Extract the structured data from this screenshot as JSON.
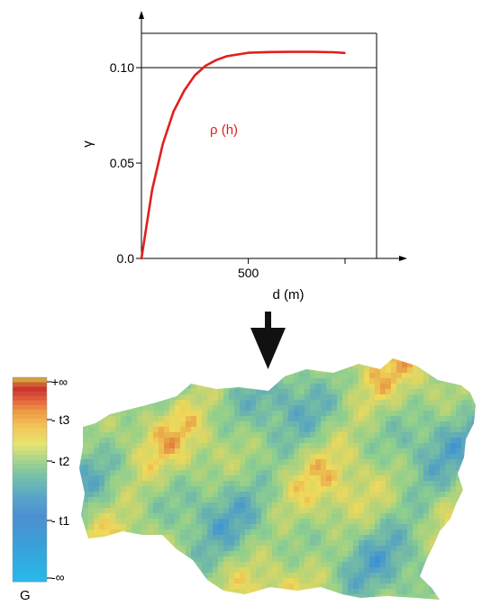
{
  "variogram_chart": {
    "xlabel": "d (m)",
    "ylabel": "γ",
    "x_tick_labels": [
      "500"
    ],
    "y_tick_labels": [
      "0.0",
      "0.05",
      "0.10"
    ],
    "curve_label": "ρ (h)",
    "curve_color": "#e0201e"
  },
  "chart_data": {
    "type": "line",
    "xlabel": "d (m)",
    "ylabel": "γ",
    "xlim": [
      0,
      1100
    ],
    "ylim": [
      0,
      0.118
    ],
    "x_ticks": [
      500
    ],
    "y_ticks": [
      0.0,
      0.05,
      0.1
    ],
    "sill_reference_line": 0.1,
    "series": [
      {
        "name": "ρ (h)",
        "color": "#e0201e",
        "x": [
          0,
          50,
          100,
          150,
          200,
          250,
          300,
          350,
          400,
          500,
          600,
          700,
          800,
          900,
          950
        ],
        "y": [
          0.0,
          0.036,
          0.06,
          0.077,
          0.088,
          0.096,
          0.101,
          0.104,
          0.106,
          0.1078,
          0.1082,
          0.1083,
          0.1083,
          0.1081,
          0.1077
        ]
      }
    ]
  },
  "arrow": {
    "direction": "down",
    "color": "#111111"
  },
  "color_legend": {
    "labels": [
      "+∞",
      "- t3",
      "- t2",
      "- t1",
      "-∞"
    ],
    "title": "G",
    "colors": [
      "#28b8ea",
      "#3a9fd8",
      "#4d8fd0",
      "#5aa6c8",
      "#76c2a8",
      "#a8d48a",
      "#e7e470",
      "#f2c858",
      "#ee9b46",
      "#e2623a",
      "#c9302e",
      "#d5a03c"
    ]
  },
  "field_map": {
    "low_color": "#3a8fd8",
    "mid_color": "#8fcf8e",
    "high_color": "#f0d95a",
    "extreme_color": "#e07a3a"
  }
}
